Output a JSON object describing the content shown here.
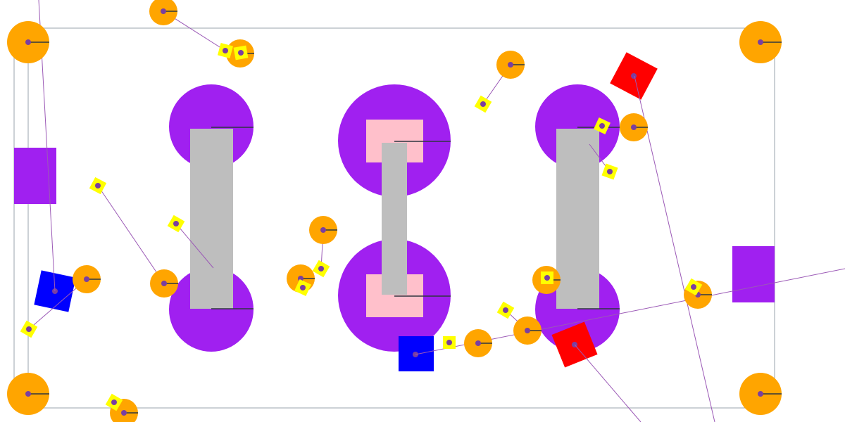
{
  "colors": {
    "background": "#ffffff",
    "frame": "#9aa3ad",
    "purple": "#a020f0",
    "gray": "#bebebe",
    "pink": "#ffc0cb",
    "orange": "#ffa500",
    "yellow": "#ffff00",
    "red": "#ff0000",
    "blue": "#0000ff",
    "link": "#9b59b6",
    "marker": "#7a3fa0",
    "tick": "#2f3640"
  },
  "legend": []
}
